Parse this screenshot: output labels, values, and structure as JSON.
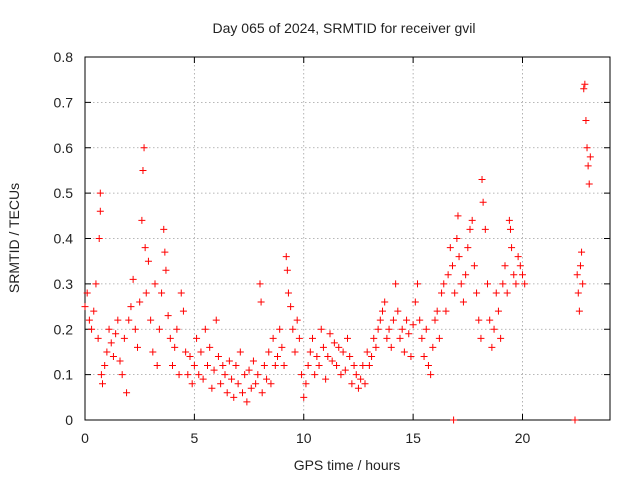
{
  "chart_data": {
    "type": "scatter",
    "title": "Day 065 of 2024, SRMTID for receiver gvil",
    "xlabel": "GPS time / hours",
    "ylabel": "SRMTID / TECUs",
    "xlim": [
      0,
      24
    ],
    "ylim": [
      0,
      0.8
    ],
    "x_ticks": [
      0,
      5,
      10,
      15,
      20
    ],
    "y_ticks": [
      0,
      0.1,
      0.2,
      0.3,
      0.4,
      0.5,
      0.6,
      0.7,
      0.8
    ],
    "x_tick_labels": [
      "0",
      "5",
      "10",
      "15",
      "20"
    ],
    "y_tick_labels": [
      "0",
      "0.1",
      "0.2",
      "0.3",
      "0.4",
      "0.5",
      "0.6",
      "0.7",
      "0.8"
    ],
    "grid": true,
    "marker": "+",
    "color": "#ff0000",
    "series": [
      {
        "name": "SRMTID",
        "points": [
          [
            0.0,
            0.25
          ],
          [
            0.1,
            0.28
          ],
          [
            0.2,
            0.22
          ],
          [
            0.3,
            0.2
          ],
          [
            0.4,
            0.24
          ],
          [
            0.5,
            0.3
          ],
          [
            0.6,
            0.18
          ],
          [
            0.65,
            0.4
          ],
          [
            0.7,
            0.5
          ],
          [
            0.7,
            0.46
          ],
          [
            0.75,
            0.1
          ],
          [
            0.8,
            0.08
          ],
          [
            0.9,
            0.12
          ],
          [
            1.0,
            0.15
          ],
          [
            1.1,
            0.2
          ],
          [
            1.2,
            0.17
          ],
          [
            1.3,
            0.14
          ],
          [
            1.4,
            0.19
          ],
          [
            1.5,
            0.22
          ],
          [
            1.6,
            0.13
          ],
          [
            1.7,
            0.1
          ],
          [
            1.8,
            0.18
          ],
          [
            1.9,
            0.06
          ],
          [
            2.0,
            0.22
          ],
          [
            2.1,
            0.25
          ],
          [
            2.2,
            0.31
          ],
          [
            2.3,
            0.2
          ],
          [
            2.4,
            0.16
          ],
          [
            2.5,
            0.26
          ],
          [
            2.6,
            0.44
          ],
          [
            2.65,
            0.55
          ],
          [
            2.7,
            0.6
          ],
          [
            2.75,
            0.38
          ],
          [
            2.8,
            0.28
          ],
          [
            2.9,
            0.35
          ],
          [
            3.0,
            0.22
          ],
          [
            3.1,
            0.15
          ],
          [
            3.2,
            0.3
          ],
          [
            3.3,
            0.12
          ],
          [
            3.4,
            0.2
          ],
          [
            3.5,
            0.28
          ],
          [
            3.6,
            0.42
          ],
          [
            3.65,
            0.37
          ],
          [
            3.7,
            0.33
          ],
          [
            3.8,
            0.23
          ],
          [
            3.9,
            0.18
          ],
          [
            4.0,
            0.12
          ],
          [
            4.1,
            0.16
          ],
          [
            4.2,
            0.2
          ],
          [
            4.3,
            0.1
          ],
          [
            4.4,
            0.28
          ],
          [
            4.5,
            0.24
          ],
          [
            4.6,
            0.15
          ],
          [
            4.7,
            0.1
          ],
          [
            4.8,
            0.14
          ],
          [
            4.9,
            0.08
          ],
          [
            5.0,
            0.12
          ],
          [
            5.1,
            0.18
          ],
          [
            5.2,
            0.1
          ],
          [
            5.3,
            0.15
          ],
          [
            5.4,
            0.09
          ],
          [
            5.5,
            0.2
          ],
          [
            5.6,
            0.12
          ],
          [
            5.7,
            0.16
          ],
          [
            5.8,
            0.07
          ],
          [
            5.9,
            0.11
          ],
          [
            6.0,
            0.22
          ],
          [
            6.1,
            0.14
          ],
          [
            6.2,
            0.08
          ],
          [
            6.3,
            0.12
          ],
          [
            6.4,
            0.1
          ],
          [
            6.5,
            0.06
          ],
          [
            6.6,
            0.13
          ],
          [
            6.7,
            0.09
          ],
          [
            6.8,
            0.05
          ],
          [
            6.9,
            0.12
          ],
          [
            7.0,
            0.08
          ],
          [
            7.1,
            0.15
          ],
          [
            7.2,
            0.06
          ],
          [
            7.3,
            0.1
          ],
          [
            7.4,
            0.04
          ],
          [
            7.5,
            0.11
          ],
          [
            7.6,
            0.07
          ],
          [
            7.7,
            0.13
          ],
          [
            7.8,
            0.08
          ],
          [
            7.9,
            0.1
          ],
          [
            8.0,
            0.3
          ],
          [
            8.05,
            0.26
          ],
          [
            8.1,
            0.06
          ],
          [
            8.2,
            0.12
          ],
          [
            8.3,
            0.09
          ],
          [
            8.4,
            0.15
          ],
          [
            8.5,
            0.08
          ],
          [
            8.6,
            0.18
          ],
          [
            8.7,
            0.12
          ],
          [
            8.8,
            0.14
          ],
          [
            8.9,
            0.2
          ],
          [
            9.0,
            0.16
          ],
          [
            9.1,
            0.12
          ],
          [
            9.2,
            0.36
          ],
          [
            9.25,
            0.33
          ],
          [
            9.3,
            0.28
          ],
          [
            9.4,
            0.25
          ],
          [
            9.5,
            0.2
          ],
          [
            9.6,
            0.15
          ],
          [
            9.7,
            0.22
          ],
          [
            9.8,
            0.18
          ],
          [
            9.9,
            0.1
          ],
          [
            10.0,
            0.05
          ],
          [
            10.1,
            0.08
          ],
          [
            10.2,
            0.12
          ],
          [
            10.3,
            0.15
          ],
          [
            10.4,
            0.18
          ],
          [
            10.5,
            0.1
          ],
          [
            10.6,
            0.14
          ],
          [
            10.7,
            0.12
          ],
          [
            10.8,
            0.2
          ],
          [
            10.9,
            0.16
          ],
          [
            11.0,
            0.09
          ],
          [
            11.1,
            0.14
          ],
          [
            11.2,
            0.19
          ],
          [
            11.3,
            0.13
          ],
          [
            11.4,
            0.17
          ],
          [
            11.5,
            0.12
          ],
          [
            11.6,
            0.16
          ],
          [
            11.7,
            0.1
          ],
          [
            11.8,
            0.15
          ],
          [
            11.9,
            0.11
          ],
          [
            12.0,
            0.18
          ],
          [
            12.1,
            0.14
          ],
          [
            12.2,
            0.08
          ],
          [
            12.3,
            0.12
          ],
          [
            12.4,
            0.1
          ],
          [
            12.5,
            0.07
          ],
          [
            12.6,
            0.09
          ],
          [
            12.7,
            0.12
          ],
          [
            12.8,
            0.08
          ],
          [
            12.9,
            0.15
          ],
          [
            13.0,
            0.12
          ],
          [
            13.1,
            0.14
          ],
          [
            13.2,
            0.18
          ],
          [
            13.3,
            0.16
          ],
          [
            13.4,
            0.2
          ],
          [
            13.5,
            0.22
          ],
          [
            13.6,
            0.24
          ],
          [
            13.7,
            0.26
          ],
          [
            13.8,
            0.18
          ],
          [
            13.9,
            0.2
          ],
          [
            14.0,
            0.16
          ],
          [
            14.1,
            0.22
          ],
          [
            14.2,
            0.3
          ],
          [
            14.3,
            0.24
          ],
          [
            14.4,
            0.18
          ],
          [
            14.5,
            0.2
          ],
          [
            14.6,
            0.15
          ],
          [
            14.7,
            0.22
          ],
          [
            14.8,
            0.19
          ],
          [
            14.9,
            0.14
          ],
          [
            15.0,
            0.21
          ],
          [
            15.1,
            0.26
          ],
          [
            15.2,
            0.3
          ],
          [
            15.3,
            0.22
          ],
          [
            15.4,
            0.18
          ],
          [
            15.5,
            0.14
          ],
          [
            15.6,
            0.2
          ],
          [
            15.7,
            0.12
          ],
          [
            15.8,
            0.1
          ],
          [
            15.9,
            0.16
          ],
          [
            16.0,
            0.22
          ],
          [
            16.1,
            0.24
          ],
          [
            16.2,
            0.18
          ],
          [
            16.3,
            0.28
          ],
          [
            16.4,
            0.3
          ],
          [
            16.5,
            0.24
          ],
          [
            16.6,
            0.32
          ],
          [
            16.7,
            0.38
          ],
          [
            16.8,
            0.34
          ],
          [
            16.9,
            0.28
          ],
          [
            17.0,
            0.4
          ],
          [
            17.05,
            0.45
          ],
          [
            17.1,
            0.36
          ],
          [
            17.2,
            0.3
          ],
          [
            17.3,
            0.26
          ],
          [
            17.4,
            0.32
          ],
          [
            17.5,
            0.38
          ],
          [
            17.6,
            0.42
          ],
          [
            17.7,
            0.44
          ],
          [
            17.8,
            0.34
          ],
          [
            17.9,
            0.28
          ],
          [
            18.0,
            0.22
          ],
          [
            18.1,
            0.18
          ],
          [
            18.15,
            0.53
          ],
          [
            18.2,
            0.48
          ],
          [
            18.3,
            0.42
          ],
          [
            18.4,
            0.3
          ],
          [
            18.5,
            0.22
          ],
          [
            18.6,
            0.16
          ],
          [
            18.7,
            0.2
          ],
          [
            18.8,
            0.28
          ],
          [
            18.9,
            0.24
          ],
          [
            19.0,
            0.18
          ],
          [
            19.1,
            0.3
          ],
          [
            19.2,
            0.34
          ],
          [
            19.3,
            0.28
          ],
          [
            19.4,
            0.44
          ],
          [
            19.45,
            0.42
          ],
          [
            19.5,
            0.38
          ],
          [
            19.6,
            0.32
          ],
          [
            19.7,
            0.3
          ],
          [
            19.8,
            0.36
          ],
          [
            19.9,
            0.34
          ],
          [
            20.0,
            0.32
          ],
          [
            20.1,
            0.3
          ],
          [
            22.5,
            0.32
          ],
          [
            22.55,
            0.28
          ],
          [
            22.6,
            0.24
          ],
          [
            22.65,
            0.34
          ],
          [
            22.7,
            0.37
          ],
          [
            22.75,
            0.3
          ],
          [
            22.8,
            0.73
          ],
          [
            22.85,
            0.74
          ],
          [
            22.9,
            0.66
          ],
          [
            22.95,
            0.6
          ],
          [
            23.0,
            0.56
          ],
          [
            23.05,
            0.52
          ],
          [
            23.1,
            0.58
          ],
          [
            16.85,
            0.0
          ],
          [
            22.4,
            0.0
          ]
        ]
      }
    ]
  }
}
